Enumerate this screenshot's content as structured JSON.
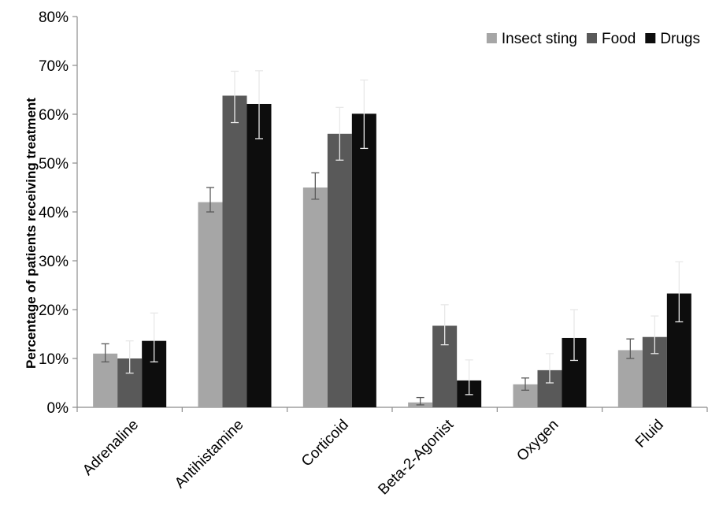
{
  "chart_data": {
    "type": "bar",
    "title": "",
    "xlabel": "",
    "ylabel": "Percentage of patients receiving treatment",
    "ylim": [
      0,
      80
    ],
    "yticks": [
      "0%",
      "10%",
      "20%",
      "30%",
      "40%",
      "50%",
      "60%",
      "70%",
      "80%"
    ],
    "categories": [
      "Adrenaline",
      "Antihistamine",
      "Corticoid",
      "Beta-2-Agonist",
      "Oxygen",
      "Fluid"
    ],
    "series": [
      {
        "name": "Insect sting",
        "color": "#a6a6a6",
        "values": [
          11.0,
          42.0,
          45.0,
          1.0,
          4.7,
          11.7
        ],
        "err_low": [
          9.3,
          40.0,
          42.6,
          0.5,
          3.5,
          10.0
        ],
        "err_high": [
          13.0,
          45.0,
          48.0,
          2.0,
          6.0,
          14.0
        ]
      },
      {
        "name": "Food",
        "color": "#595959",
        "values": [
          10.0,
          63.8,
          56.0,
          16.7,
          7.6,
          14.4
        ],
        "err_low": [
          7.0,
          58.3,
          50.6,
          12.8,
          5.0,
          11.0
        ],
        "err_high": [
          13.6,
          68.8,
          61.4,
          21.0,
          11.0,
          18.7
        ]
      },
      {
        "name": "Drugs",
        "color": "#0d0d0d",
        "values": [
          13.6,
          62.1,
          60.1,
          5.5,
          14.2,
          23.3
        ],
        "err_low": [
          9.3,
          55.0,
          53.0,
          2.6,
          9.6,
          17.5
        ],
        "err_high": [
          19.3,
          68.9,
          67.0,
          9.7,
          20.0,
          29.8
        ]
      }
    ],
    "grid": false,
    "legend_position": "top-right"
  }
}
